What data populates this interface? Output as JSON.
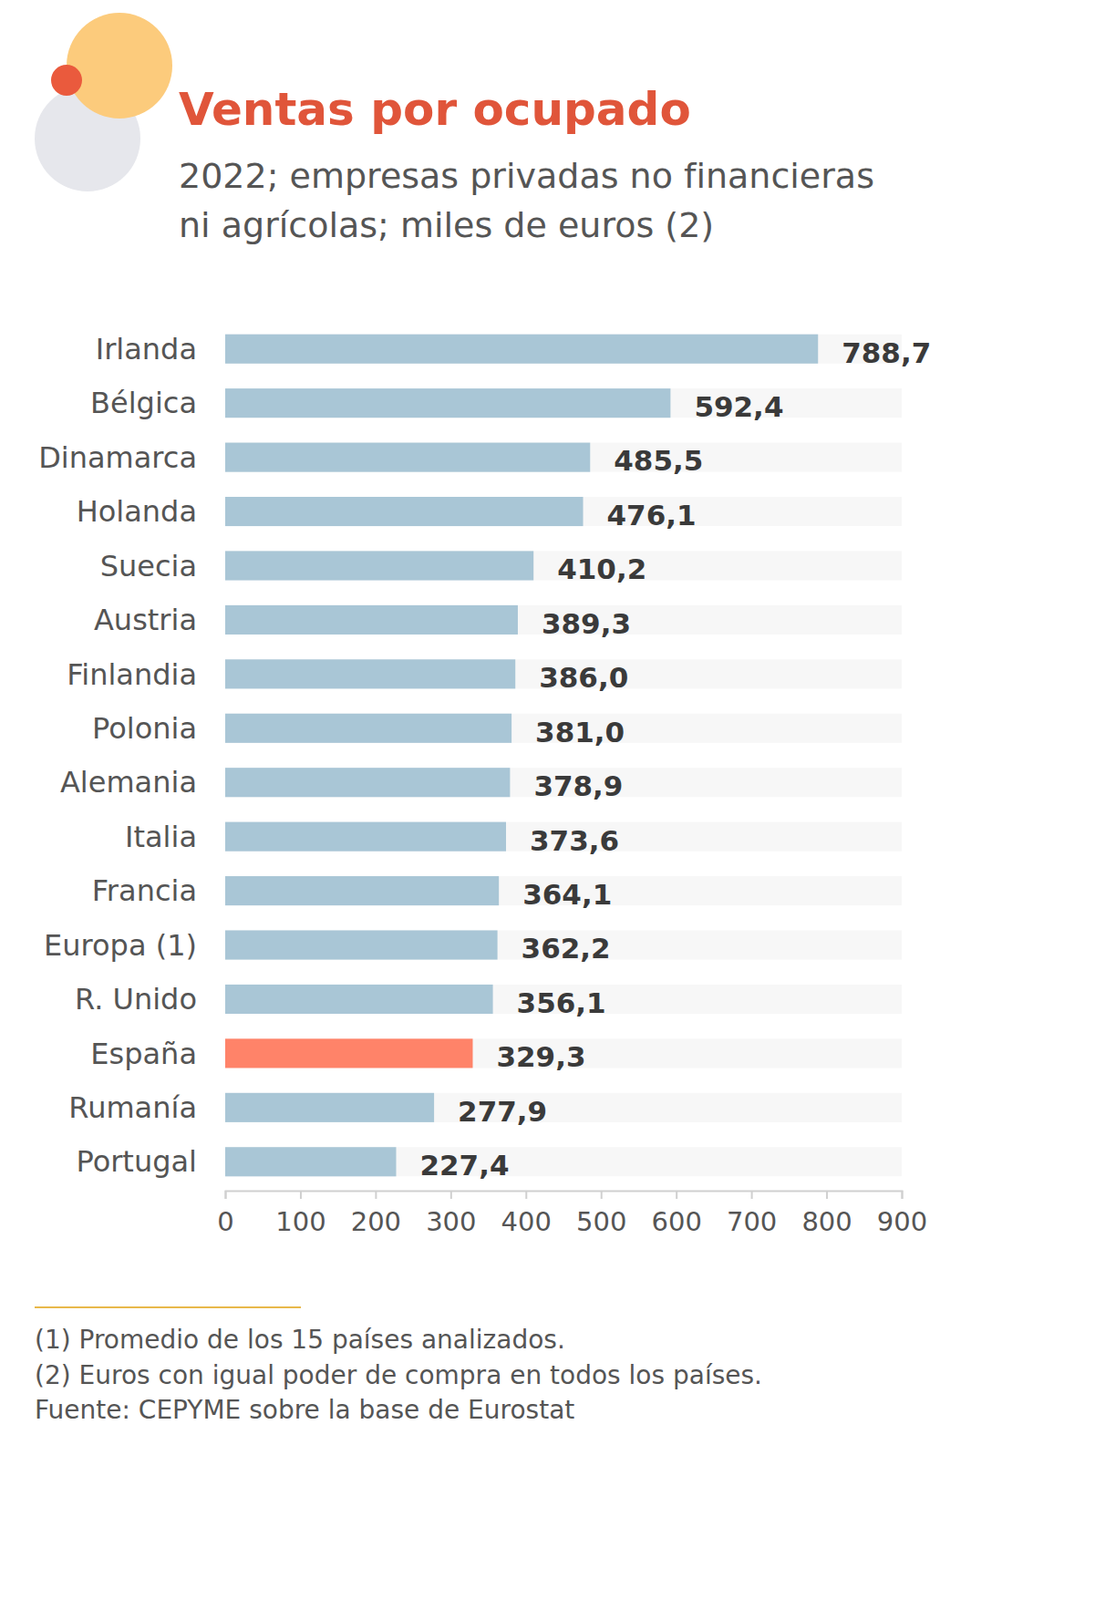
{
  "chart_data": {
    "type": "bar",
    "orientation": "horizontal",
    "title": "Ventas por ocupado",
    "subtitle": [
      "2022; empresas privadas no financieras",
      "ni agrícolas; miles de euros (2)"
    ],
    "categories": [
      "Irlanda",
      "Bélgica",
      "Dinamarca",
      "Holanda",
      "Suecia",
      "Austria",
      "Finlandia",
      "Polonia",
      "Alemania",
      "Italia",
      "Francia",
      "Europa (1)",
      "R. Unido",
      "España",
      "Rumanía",
      "Portugal"
    ],
    "values": [
      788.7,
      592.4,
      485.5,
      476.1,
      410.2,
      389.3,
      386.0,
      381.0,
      378.9,
      373.6,
      364.1,
      362.2,
      356.1,
      329.3,
      277.9,
      227.4
    ],
    "value_labels": [
      "788,7",
      "592,4",
      "485,5",
      "476,1",
      "410,2",
      "389,3",
      "386,0",
      "381,0",
      "378,9",
      "373,6",
      "364,1",
      "362,2",
      "356,1",
      "329,3",
      "277,9",
      "227,4"
    ],
    "colors": [
      "#a9c6d6",
      "#a9c6d6",
      "#a9c6d6",
      "#a9c6d6",
      "#a9c6d6",
      "#a9c6d6",
      "#a9c6d6",
      "#a9c6d6",
      "#a9c6d6",
      "#a9c6d6",
      "#a9c6d6",
      "#a9c6d6",
      "#a9c6d6",
      "#ff8369",
      "#a9c6d6",
      "#a9c6d6"
    ],
    "data_labels": true,
    "grid": false,
    "xlim": [
      0,
      900
    ],
    "xticks": [
      0,
      100,
      200,
      300,
      400,
      500,
      600,
      700,
      800,
      900
    ],
    "notes": [
      "(1) Promedio de los 15 países analizados.",
      "(2) Euros con igual poder de compra en todos los países.",
      "Fuente: CEPYME sobre la base de Eurostat"
    ]
  }
}
